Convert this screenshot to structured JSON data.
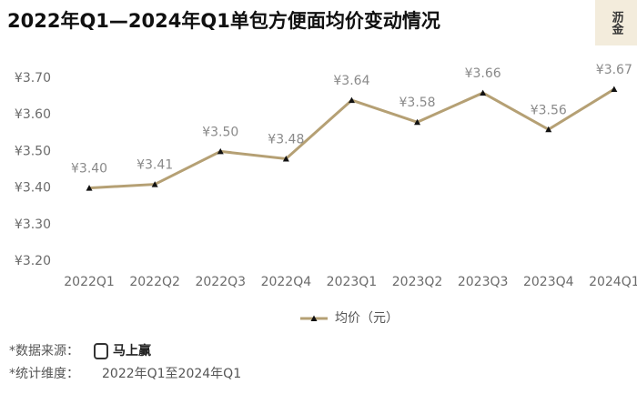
{
  "chart_data": {
    "type": "line",
    "title": "2022年Q1—2024年Q1单包方便面均价变动情况",
    "logo": "沥金",
    "categories": [
      "2022Q1",
      "2022Q2",
      "2022Q3",
      "2022Q4",
      "2023Q1",
      "2023Q2",
      "2023Q3",
      "2023Q4",
      "2024Q1"
    ],
    "series": [
      {
        "name": "均价（元）",
        "color": "#b5a074",
        "values": [
          3.4,
          3.41,
          3.5,
          3.48,
          3.64,
          3.58,
          3.66,
          3.56,
          3.67
        ],
        "value_labels": [
          "¥3.40",
          "¥3.41",
          "¥3.50",
          "¥3.48",
          "¥3.64",
          "¥3.58",
          "¥3.66",
          "¥3.56",
          "¥3.67"
        ]
      }
    ],
    "ylim": [
      3.2,
      3.7
    ],
    "yticks": [
      {
        "value": 3.2,
        "label": "¥3.20"
      },
      {
        "value": 3.3,
        "label": "¥3.30"
      },
      {
        "value": 3.4,
        "label": "¥3.40"
      },
      {
        "value": 3.5,
        "label": "¥3.50"
      },
      {
        "value": 3.6,
        "label": "¥3.60"
      },
      {
        "value": 3.7,
        "label": "¥3.70"
      }
    ],
    "source_label": "*数据来源：",
    "source": "马上赢",
    "dimension_label": "*统计维度：",
    "dimension": "2022年Q1至2024年Q1"
  }
}
